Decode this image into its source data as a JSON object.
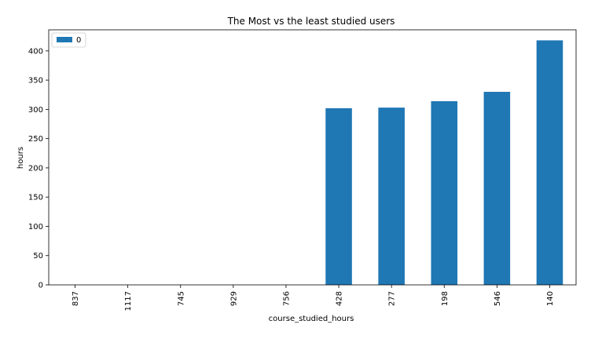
{
  "chart_data": {
    "type": "bar",
    "title": "The Most vs the least studied users",
    "xlabel": "course_studied_hours",
    "ylabel": "hours",
    "categories": [
      "837",
      "1117",
      "745",
      "929",
      "756",
      "428",
      "277",
      "198",
      "546",
      "140"
    ],
    "series": [
      {
        "name": "0",
        "values": [
          0,
          0,
          0,
          0,
          0,
          302,
          303,
          314,
          330,
          418
        ],
        "color": "#1f77b4"
      }
    ],
    "ylim": [
      0,
      436
    ],
    "yticks": [
      0,
      50,
      100,
      150,
      200,
      250,
      300,
      350,
      400
    ],
    "grid": false,
    "legend_position": "upper left"
  }
}
